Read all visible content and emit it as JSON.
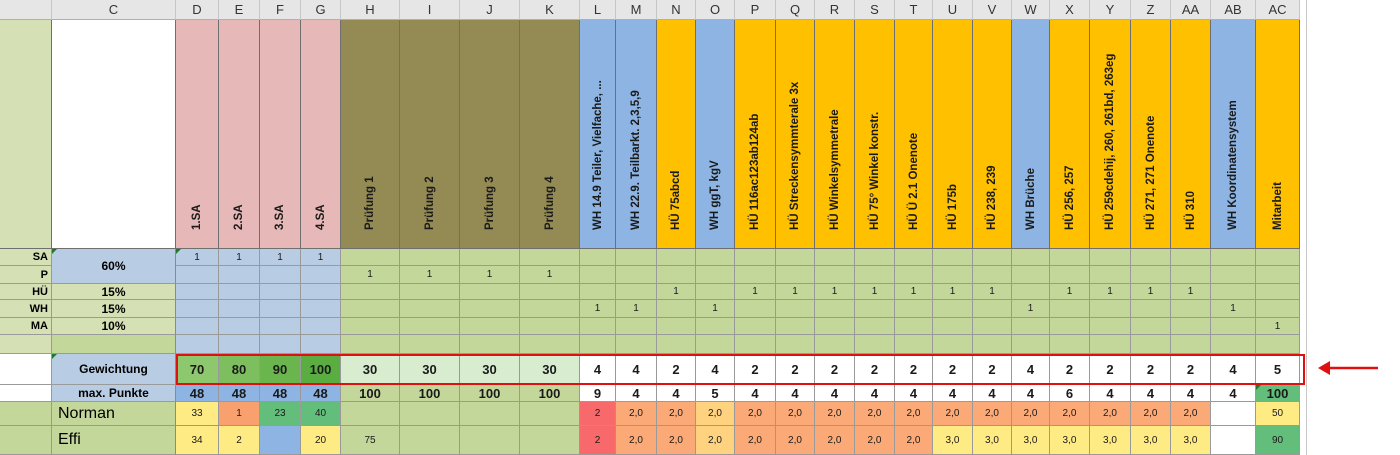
{
  "colors": {
    "sa": "#e6b8b7",
    "pruefung": "#948a54",
    "wh": "#8db4e2",
    "hue": "#ffc000",
    "rowlabel": "#d5e1b5",
    "blue": "#b8cce4",
    "green": "#c4d79b",
    "highlight": "#e01010"
  },
  "column_letters": [
    "C",
    "D",
    "E",
    "F",
    "G",
    "H",
    "I",
    "J",
    "K",
    "L",
    "M",
    "N",
    "O",
    "P",
    "Q",
    "R",
    "S",
    "T",
    "U",
    "V",
    "W",
    "X",
    "Y",
    "Z",
    "AA",
    "AB",
    "AC"
  ],
  "headers": [
    {
      "label": "1.SA",
      "type": "sa"
    },
    {
      "label": "2.SA",
      "type": "sa"
    },
    {
      "label": "3.SA",
      "type": "sa"
    },
    {
      "label": "4.SA",
      "type": "sa"
    },
    {
      "label": "Prüfung 1",
      "type": "pruefung"
    },
    {
      "label": "Prüfung 2",
      "type": "pruefung"
    },
    {
      "label": "Prüfung 3",
      "type": "pruefung"
    },
    {
      "label": "Prüfung 4",
      "type": "pruefung"
    },
    {
      "label": "WH 14.9 Teiler, Vielfache, ...",
      "type": "wh"
    },
    {
      "label": "WH 22.9. Teilbarkt. 2,3,5,9",
      "type": "wh"
    },
    {
      "label": "HÜ 75abcd",
      "type": "hue"
    },
    {
      "label": "WH ggT, kgV",
      "type": "wh"
    },
    {
      "label": "HÜ 116ac123ab124ab",
      "type": "hue"
    },
    {
      "label": "HÜ Streckensymmterale 3x",
      "type": "hue"
    },
    {
      "label": "HÜ Winkelsymmetrale",
      "type": "hue"
    },
    {
      "label": "HÜ 75° Winkel konstr.",
      "type": "hue"
    },
    {
      "label": "HÜ Ü 2.1 Onenote",
      "type": "hue"
    },
    {
      "label": "HÜ 175b",
      "type": "hue"
    },
    {
      "label": "HÜ 238, 239",
      "type": "hue"
    },
    {
      "label": "WH Brüche",
      "type": "wh"
    },
    {
      "label": "HÜ 256, 257",
      "type": "hue"
    },
    {
      "label": "HÜ 259cdehij, 260, 261bd, 263eg",
      "type": "hue"
    },
    {
      "label": "HÜ 271, 271 Onenote",
      "type": "hue"
    },
    {
      "label": "HÜ 310",
      "type": "hue"
    },
    {
      "label": "WH Koordinatensystem",
      "type": "wh"
    },
    {
      "label": "Mitarbeit",
      "type": "hue"
    }
  ],
  "categories": [
    {
      "code": "SA",
      "marks": [
        "1",
        "1",
        "1",
        "1",
        "",
        "",
        "",
        "",
        "",
        "",
        "",
        "",
        "",
        "",
        "",
        "",
        "",
        "",
        "",
        "",
        "",
        "",
        "",
        "",
        "",
        ""
      ]
    },
    {
      "code": "P",
      "marks": [
        "",
        "",
        "",
        "",
        "1",
        "1",
        "1",
        "1",
        "",
        "",
        "",
        "",
        "",
        "",
        "",
        "",
        "",
        "",
        "",
        "",
        "",
        "",
        "",
        "",
        "",
        ""
      ]
    },
    {
      "code": "HÜ",
      "marks": [
        "",
        "",
        "",
        "",
        "",
        "",
        "",
        "",
        "",
        "",
        "1",
        "",
        "1",
        "1",
        "1",
        "1",
        "1",
        "1",
        "1",
        "",
        "1",
        "1",
        "1",
        "1",
        "",
        ""
      ]
    },
    {
      "code": "WH",
      "marks": [
        "",
        "",
        "",
        "",
        "",
        "",
        "",
        "",
        "1",
        "1",
        "",
        "1",
        "",
        "",
        "",
        "",
        "",
        "",
        "",
        "1",
        "",
        "",
        "",
        "",
        "1",
        ""
      ]
    },
    {
      "code": "MA",
      "marks": [
        "",
        "",
        "",
        "",
        "",
        "",
        "",
        "",
        "",
        "",
        "",
        "",
        "",
        "",
        "",
        "",
        "",
        "",
        "",
        "",
        "",
        "",
        "",
        "",
        "",
        "1"
      ]
    }
  ],
  "percent_labels": {
    "sa_p": "60%",
    "hue": "15%",
    "wh": "15%",
    "ma": "10%"
  },
  "weighting": {
    "label": "Gewichtung",
    "values": [
      "70",
      "80",
      "90",
      "100",
      "30",
      "30",
      "30",
      "30",
      "4",
      "4",
      "2",
      "4",
      "2",
      "2",
      "2",
      "2",
      "2",
      "2",
      "2",
      "4",
      "2",
      "2",
      "2",
      "2",
      "4",
      "5"
    ]
  },
  "max_points": {
    "label": "max. Punkte",
    "values": [
      "48",
      "48",
      "48",
      "48",
      "100",
      "100",
      "100",
      "100",
      "9",
      "4",
      "4",
      "5",
      "4",
      "4",
      "4",
      "4",
      "4",
      "4",
      "4",
      "4",
      "6",
      "4",
      "4",
      "4",
      "4",
      "100"
    ]
  },
  "students": [
    {
      "name": "Norman",
      "values": [
        "33",
        "1",
        "23",
        "40",
        "",
        "",
        "",
        "",
        "2",
        "2,0",
        "2,0",
        "2,0",
        "2,0",
        "2,0",
        "2,0",
        "2,0",
        "2,0",
        "2,0",
        "2,0",
        "2,0",
        "2,0",
        "2,0",
        "2,0",
        "2,0",
        "",
        "50"
      ]
    },
    {
      "name": "Effi",
      "values": [
        "34",
        "2",
        "",
        "20",
        "75",
        "",
        "",
        "",
        "2",
        "2,0",
        "2,0",
        "2,0",
        "2,0",
        "2,0",
        "2,0",
        "2,0",
        "2,0",
        "3,0",
        "3,0",
        "3,0",
        "3,0",
        "3,0",
        "3,0",
        "3,0",
        "",
        "90"
      ]
    }
  ]
}
